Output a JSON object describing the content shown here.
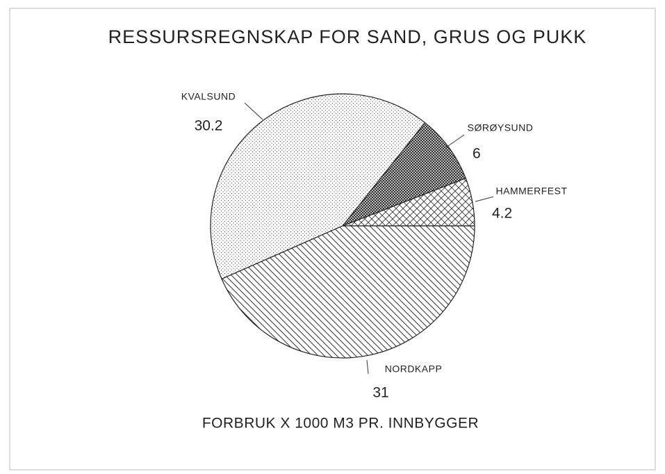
{
  "chart_data": {
    "type": "pie",
    "title": "RESSURSREGNSKAP FOR SAND, GRUS OG PUKK",
    "subtitle": "FORBRUK X 1000 M3 PR. INNBYGGER",
    "categories": [
      "HAMMERFEST",
      "SØRØYSUND",
      "KVALSUND",
      "NORDKAPP"
    ],
    "values": [
      4.2,
      6,
      30.2,
      31
    ]
  }
}
